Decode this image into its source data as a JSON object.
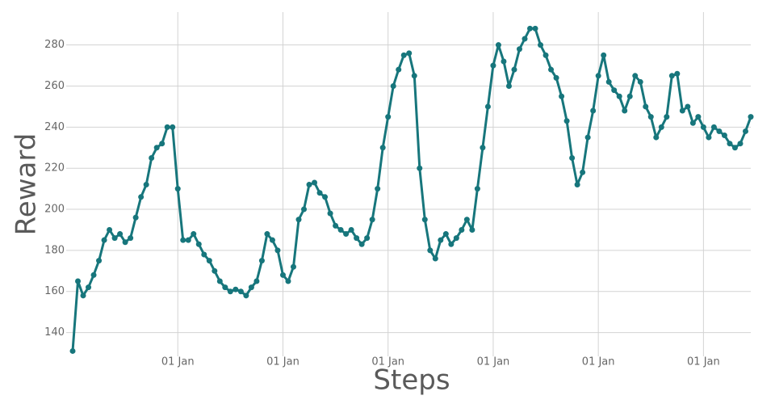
{
  "chart_data": {
    "type": "line",
    "x_label": "Steps",
    "y_label": "Reward",
    "x": [
      0,
      50,
      100,
      150,
      200,
      250,
      300,
      350,
      400,
      450,
      500,
      550,
      600,
      650,
      700,
      750,
      800,
      850,
      900,
      950,
      1000,
      1050,
      1100,
      1150,
      1200,
      1250,
      1300,
      1350,
      1400,
      1450,
      1500,
      1550,
      1600,
      1650,
      1700,
      1750,
      1800,
      1850,
      1900,
      1950,
      2000,
      2050,
      2100,
      2150,
      2200,
      2250,
      2300,
      2350,
      2400,
      2450,
      2500,
      2550,
      2600,
      2650,
      2700,
      2750,
      2800,
      2850,
      2900,
      2950,
      3000,
      3050,
      3100,
      3150,
      3200,
      3250,
      3300,
      3350,
      3400,
      3450,
      3500,
      3550,
      3600,
      3650,
      3700,
      3750,
      3800,
      3850,
      3900,
      3950,
      4000,
      4050,
      4100,
      4150,
      4200,
      4250,
      4300,
      4350,
      4400,
      4450,
      4500,
      4550,
      4600,
      4650,
      4700,
      4750,
      4800,
      4850,
      4900,
      4950,
      5000,
      5050,
      5100,
      5150,
      5200,
      5250,
      5300,
      5350,
      5400,
      5450,
      5500,
      5550,
      5600,
      5650,
      5700,
      5750,
      5800,
      5850,
      5900,
      5950,
      6000,
      6050,
      6100,
      6150,
      6200,
      6250,
      6300,
      6350,
      6400,
      6450
    ],
    "series": [
      {
        "name": "Reward",
        "color": "#17767c",
        "values": [
          131,
          165,
          158,
          162,
          168,
          175,
          185,
          190,
          186,
          188,
          184,
          186,
          196,
          206,
          212,
          225,
          230,
          232,
          240,
          240,
          210,
          185,
          185,
          188,
          183,
          178,
          175,
          170,
          165,
          162,
          160,
          161,
          160,
          158,
          162,
          165,
          175,
          188,
          185,
          180,
          168,
          165,
          172,
          195,
          200,
          212,
          213,
          208,
          206,
          198,
          192,
          190,
          188,
          190,
          186,
          183,
          186,
          195,
          210,
          230,
          245,
          260,
          268,
          275,
          276,
          265,
          220,
          195,
          180,
          176,
          185,
          188,
          183,
          186,
          190,
          195,
          190,
          210,
          230,
          250,
          270,
          280,
          272,
          260,
          268,
          278,
          283,
          288,
          288,
          280,
          275,
          268,
          264,
          255,
          243,
          225,
          212,
          218,
          235,
          248,
          265,
          275,
          262,
          258,
          255,
          248,
          255,
          265,
          262,
          250,
          245,
          235,
          240,
          245,
          265,
          266,
          248,
          250,
          242,
          245,
          240,
          235,
          240,
          238,
          236,
          232,
          230,
          232,
          238,
          245
        ]
      }
    ],
    "xlim": [
      0,
      6450
    ],
    "ylim": [
      130,
      296
    ],
    "xticks": [
      {
        "value": 1000,
        "label": "01 Jan"
      },
      {
        "value": 2000,
        "label": "01 Jan"
      },
      {
        "value": 3000,
        "label": "01 Jan"
      },
      {
        "value": 4000,
        "label": "01 Jan"
      },
      {
        "value": 5000,
        "label": "01 Jan"
      },
      {
        "value": 6000,
        "label": "01 Jan"
      }
    ],
    "yticks": [
      140,
      160,
      180,
      200,
      220,
      240,
      260,
      280
    ],
    "grid": true
  }
}
